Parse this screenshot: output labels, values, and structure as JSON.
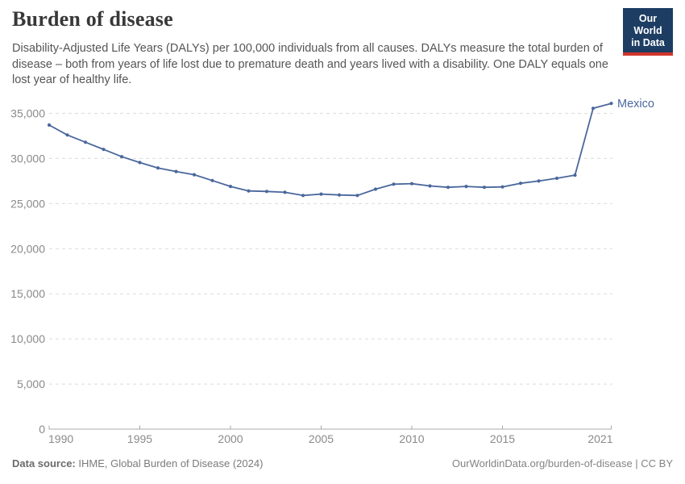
{
  "header": {
    "title": "Burden of disease",
    "subtitle": "Disability-Adjusted Life Years (DALYs) per 100,000 individuals from all causes. DALYs measure the total burden of disease – both from years of life lost due to premature death and years lived with a disability. One DALY equals one lost year of healthy life.",
    "logo": {
      "line1": "Our World",
      "line2": "in Data",
      "bg_color": "#1d3d63",
      "accent_color": "#d1352b"
    }
  },
  "chart_data": {
    "type": "line",
    "title": "Burden of disease",
    "entity_label": "Mexico",
    "x": [
      1990,
      1991,
      1992,
      1993,
      1994,
      1995,
      1996,
      1997,
      1998,
      1999,
      2000,
      2001,
      2002,
      2003,
      2004,
      2005,
      2006,
      2007,
      2008,
      2009,
      2010,
      2011,
      2012,
      2013,
      2014,
      2015,
      2016,
      2017,
      2018,
      2019,
      2020,
      2021
    ],
    "series": [
      {
        "name": "Mexico",
        "color": "#4a679c",
        "values": [
          33700,
          32600,
          31800,
          31000,
          30200,
          29550,
          28950,
          28550,
          28200,
          27550,
          26900,
          26400,
          26350,
          26250,
          25900,
          26050,
          25950,
          25900,
          26600,
          27150,
          27200,
          26950,
          26800,
          26900,
          26800,
          26850,
          27250,
          27500,
          27800,
          28150,
          35550,
          36100
        ]
      }
    ],
    "xlabel": "",
    "ylabel": "",
    "xlim": [
      1990,
      2021
    ],
    "ylim": [
      0,
      36500
    ],
    "x_ticks": [
      1990,
      1995,
      2000,
      2005,
      2010,
      2015,
      2021
    ],
    "y_ticks": [
      0,
      5000,
      10000,
      15000,
      20000,
      25000,
      30000,
      35000
    ],
    "grid": "horizontal dashed",
    "legend": "end-of-line label",
    "axis_text_color": "#8a8a8a",
    "grid_color": "#dcdcdc",
    "axis_line_color": "#a8a8a8"
  },
  "footer": {
    "source_label": "Data source:",
    "source_value": "IHME, Global Burden of Disease (2024)",
    "license": "OurWorldinData.org/burden-of-disease | CC BY"
  }
}
